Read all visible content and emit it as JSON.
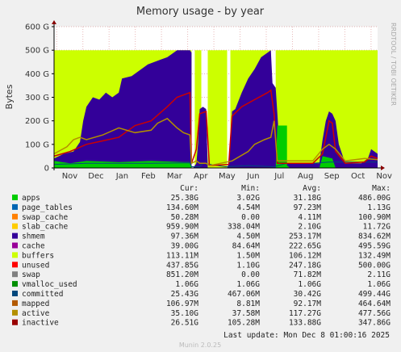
{
  "chart_data": {
    "type": "area",
    "title": "Memory usage - by year",
    "ylabel": "Bytes",
    "side_label": "RRDTOOL / TOBI OETIKER",
    "y_ticks": [
      "0",
      "100 G",
      "200 G",
      "300 G",
      "400 G",
      "500 G",
      "600 G"
    ],
    "ylim": [
      0,
      600
    ],
    "unit": "G",
    "x_ticks": [
      "Nov",
      "Dec",
      "Jan",
      "Feb",
      "Mar",
      "Apr",
      "May",
      "Jun",
      "Jul",
      "Aug",
      "Sep",
      "Oct",
      "Nov"
    ],
    "grid": true,
    "legend_placement": "bottom",
    "legend_headers": [
      "Cur:",
      "Min:",
      "Avg:",
      "Max:"
    ],
    "series": [
      {
        "name": "apps",
        "color": "#00cc00",
        "cur": "25.38G",
        "min": "3.02G",
        "avg": "31.18G",
        "max": "486.00G"
      },
      {
        "name": "page_tables",
        "color": "#0066b3",
        "cur": "134.60M",
        "min": "4.54M",
        "avg": "97.23M",
        "max": "1.13G"
      },
      {
        "name": "swap_cache",
        "color": "#ff8000",
        "cur": "50.28M",
        "min": "0.00",
        "avg": "4.11M",
        "max": "100.90M"
      },
      {
        "name": "slab_cache",
        "color": "#ffcc00",
        "cur": "959.90M",
        "min": "338.04M",
        "avg": "2.10G",
        "max": "11.72G"
      },
      {
        "name": "shmem",
        "color": "#330099",
        "cur": "97.36M",
        "min": "4.50M",
        "avg": "253.17M",
        "max": "834.62M"
      },
      {
        "name": "cache",
        "color": "#990099",
        "cur": "39.00G",
        "min": "84.64M",
        "avg": "222.65G",
        "max": "495.59G"
      },
      {
        "name": "buffers",
        "color": "#ccff00",
        "cur": "113.11M",
        "min": "1.50M",
        "avg": "106.12M",
        "max": "132.49M"
      },
      {
        "name": "unused",
        "color": "#ff0000",
        "cur": "437.85G",
        "min": "1.10G",
        "avg": "247.18G",
        "max": "500.00G"
      },
      {
        "name": "swap",
        "color": "#808080",
        "cur": "851.20M",
        "min": "0.00",
        "avg": "71.82M",
        "max": "2.11G"
      },
      {
        "name": "vmalloc_used",
        "color": "#008f00",
        "cur": "1.06G",
        "min": "1.06G",
        "avg": "1.06G",
        "max": "1.06G"
      },
      {
        "name": "committed",
        "color": "#00487d",
        "cur": "25.43G",
        "min": "467.06M",
        "avg": "30.42G",
        "max": "499.44G"
      },
      {
        "name": "mapped",
        "color": "#b35a00",
        "cur": "106.97M",
        "min": "8.81M",
        "avg": "92.17M",
        "max": "464.64M"
      },
      {
        "name": "active",
        "color": "#b38f00",
        "cur": "35.10G",
        "min": "37.58M",
        "avg": "117.27G",
        "max": "477.56G"
      },
      {
        "name": "inactive",
        "color": "#990000",
        "cur": "26.51G",
        "min": "105.28M",
        "avg": "133.88G",
        "max": "347.86G"
      }
    ],
    "colors": {
      "bg": "#f0f0f0",
      "plot_bg": "#ffffff",
      "unused": "#ccff00",
      "cache": "#330099",
      "apps": "#00cc00",
      "inactive": "#cc0000",
      "active": "#b38f00",
      "committed": "#00487d",
      "grid_h": "#e0c0c0",
      "grid_v": "#e8c8c8"
    }
  },
  "footer": {
    "last_update": "Last update:  Mon Dec  8 01:00:16 2025",
    "version": "Munin 2.0.25"
  }
}
